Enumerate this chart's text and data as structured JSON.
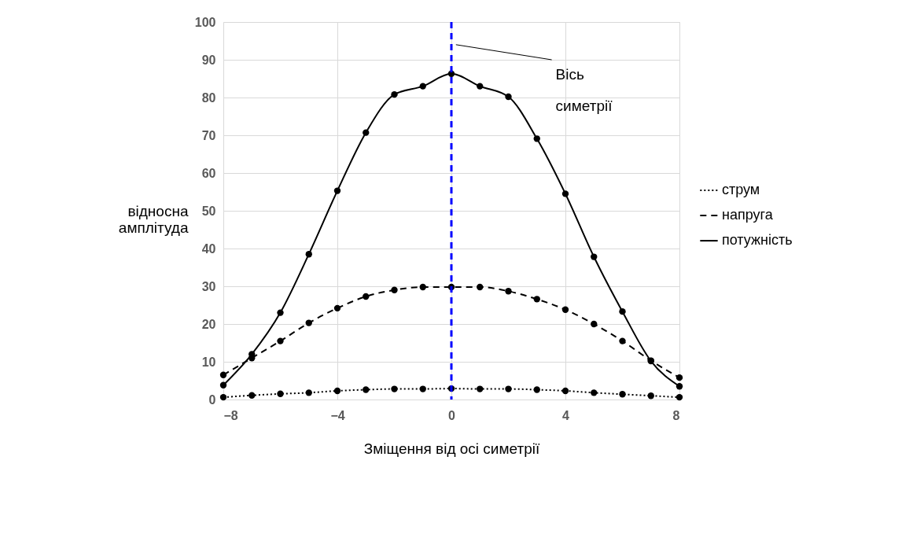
{
  "chart_data": {
    "type": "line",
    "xlabel": "Зміщення від осі симетрії",
    "ylabel": "відносна амплітуда",
    "x": [
      -8,
      -7,
      -6,
      -5,
      -4,
      -3,
      -2,
      -1,
      0,
      1,
      2,
      3,
      4,
      5,
      6,
      7,
      8
    ],
    "series": [
      {
        "name": "струм",
        "color": "#000000",
        "line_style": "dotted",
        "values": [
          0.6,
          1.1,
          1.5,
          1.8,
          2.3,
          2.6,
          2.8,
          2.8,
          2.9,
          2.8,
          2.8,
          2.6,
          2.3,
          1.8,
          1.4,
          1.0,
          0.6
        ]
      },
      {
        "name": "напруга",
        "color": "#000000",
        "line_style": "dashed",
        "values": [
          6.5,
          11,
          15.5,
          20.3,
          24.2,
          27.3,
          29,
          29.8,
          29.8,
          29.8,
          28.7,
          26.6,
          23.8,
          20,
          15.5,
          10.3,
          5.8
        ]
      },
      {
        "name": "потужність",
        "color": "#000000",
        "line_style": "solid",
        "values": [
          3.8,
          12,
          23,
          38.5,
          55.3,
          70.7,
          80.8,
          83,
          86.3,
          83,
          80.2,
          69.1,
          54.5,
          37.8,
          23.3,
          10.2,
          3.5
        ]
      }
    ],
    "xlim": [
      -8,
      8
    ],
    "xticks": [
      -8,
      -4,
      0,
      4,
      8
    ],
    "ylim": [
      0,
      100
    ],
    "yticks": [
      0,
      10,
      20,
      30,
      40,
      50,
      60,
      70,
      80,
      90,
      100
    ],
    "ref_lines": [
      {
        "axis": "x",
        "value": 0,
        "label": "Вісь симетрії",
        "color": "#0000ff",
        "line_style": "dashed"
      }
    ],
    "grid": true,
    "legend": "right",
    "marker": "circle"
  }
}
